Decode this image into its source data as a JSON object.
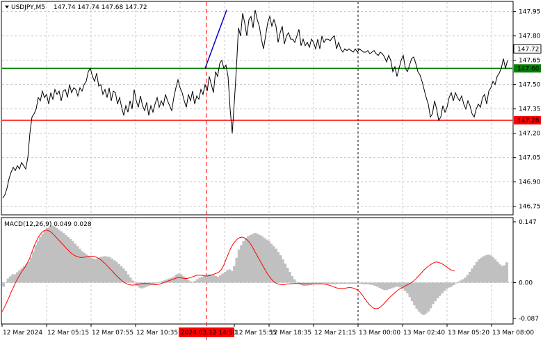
{
  "header": {
    "symbol_timeframe": "USDJPY,M5",
    "ohlc": "147.74 147.74 147.68 147.72"
  },
  "macd": {
    "label": "MACD(12,26,9) 0.049 0.028",
    "axis_labels": [
      "0.147",
      "0.00",
      "-0.087"
    ]
  },
  "price_axis": {
    "ticks": [
      "147.95",
      "147.80",
      "147.65",
      "147.50",
      "147.35",
      "147.20",
      "147.05",
      "146.90",
      "146.75"
    ],
    "current_price": "147.72",
    "levels": [
      {
        "value": "147.60",
        "color": "#008000"
      },
      {
        "value": "147.28",
        "color": "#ff0000"
      }
    ]
  },
  "time_axis": {
    "labels": [
      "12 Mar 2024",
      "12 Mar 05:15",
      "12 Mar 07:55",
      "12 Mar 10:35",
      "12 Mar 15:55",
      "12 Mar 18:35",
      "12 Mar 21:15",
      "13 Mar 00:00",
      "13 Mar 02:40",
      "13 Mar 05:20",
      "13 Mar 08:00"
    ],
    "highlight": "2024.03.12 14:50"
  },
  "colors": {
    "price_line": "#000000",
    "trend_line": "#0000cc",
    "macd_histogram": "#c0c0c0",
    "macd_signal": "#ff0000",
    "grid": "#c8c8c8",
    "highlight_bg": "#ff0000"
  },
  "chart_data": {
    "type": "line",
    "title": "USDJPY,M5",
    "ylim": [
      146.71,
      148.0
    ],
    "price_x": [
      0,
      3,
      6,
      9,
      12,
      15,
      18,
      21,
      24,
      27,
      30,
      33,
      36,
      39,
      42,
      45,
      48,
      51,
      54,
      57,
      60,
      63,
      66,
      69,
      72,
      75,
      78,
      81,
      84,
      87,
      90,
      93,
      96,
      99,
      102,
      105,
      108,
      111,
      114,
      117,
      120,
      123,
      126,
      129,
      132,
      135,
      138,
      141,
      144,
      147,
      150,
      153,
      156,
      159,
      162,
      165,
      168,
      171,
      174,
      177,
      180,
      183,
      186,
      189,
      192,
      195,
      198,
      201,
      204,
      207,
      210,
      213,
      216,
      219,
      222,
      225,
      228,
      231,
      234,
      237,
      240,
      243,
      246,
      249,
      252,
      255,
      258,
      261,
      264,
      267,
      270,
      273,
      276,
      279,
      282,
      285,
      288,
      291,
      294,
      297,
      300,
      303,
      306,
      309,
      312,
      315,
      318,
      321,
      324,
      327,
      330,
      333,
      336,
      339,
      342,
      345,
      348,
      351,
      354,
      357,
      360,
      363,
      366,
      369,
      372,
      375,
      378,
      381,
      384,
      387,
      390,
      393,
      396,
      399,
      402,
      405,
      408,
      411,
      414,
      417,
      420,
      423,
      426,
      429,
      432,
      435,
      438,
      441,
      444,
      447,
      450,
      453,
      456,
      459,
      462,
      465,
      468,
      471,
      474,
      477,
      480,
      483,
      486,
      489,
      492,
      495,
      498,
      501,
      504,
      507,
      510,
      513,
      516,
      519,
      522,
      525,
      528,
      531,
      534,
      537,
      540,
      543,
      546,
      549,
      552,
      555,
      558,
      561,
      564,
      567,
      570,
      573,
      576,
      579,
      582,
      585,
      588,
      591,
      594,
      597,
      600,
      603,
      606,
      609,
      612,
      615,
      618,
      621,
      624,
      627,
      630,
      633,
      636,
      639,
      642,
      645,
      648,
      651,
      654,
      657,
      660,
      663,
      666,
      669,
      672,
      675,
      678,
      681,
      684,
      687,
      690,
      693,
      696,
      699,
      702,
      705,
      708,
      711,
      714,
      717,
      720,
      723,
      726
    ],
    "price": [
      146.8,
      146.82,
      146.86,
      146.92,
      146.96,
      146.99,
      146.97,
      147.0,
      146.98,
      147.02,
      147.0,
      146.98,
      147.05,
      147.2,
      147.3,
      147.32,
      147.35,
      147.42,
      147.4,
      147.46,
      147.42,
      147.44,
      147.38,
      147.45,
      147.41,
      147.47,
      147.44,
      147.46,
      147.4,
      147.46,
      147.47,
      147.42,
      147.5,
      147.45,
      147.48,
      147.47,
      147.43,
      147.48,
      147.46,
      147.5,
      147.52,
      147.58,
      147.6,
      147.55,
      147.52,
      147.57,
      147.49,
      147.5,
      147.44,
      147.47,
      147.42,
      147.48,
      147.4,
      147.46,
      147.45,
      147.38,
      147.42,
      147.36,
      147.31,
      147.37,
      147.33,
      147.4,
      147.35,
      147.47,
      147.4,
      147.36,
      147.43,
      147.37,
      147.34,
      147.39,
      147.31,
      147.37,
      147.33,
      147.38,
      147.42,
      147.36,
      147.4,
      147.37,
      147.44,
      147.4,
      147.37,
      147.34,
      147.42,
      147.48,
      147.53,
      147.48,
      147.45,
      147.4,
      147.36,
      147.44,
      147.4,
      147.46,
      147.38,
      147.43,
      147.41,
      147.47,
      147.44,
      147.5,
      147.46,
      147.55,
      147.5,
      147.45,
      147.58,
      147.55,
      147.63,
      147.65,
      147.6,
      147.62,
      147.55,
      147.35,
      147.2,
      147.39,
      147.6,
      147.85,
      147.8,
      147.94,
      147.88,
      147.8,
      147.9,
      147.92,
      147.85,
      147.96,
      147.9,
      147.86,
      147.78,
      147.72,
      147.8,
      147.88,
      147.92,
      147.86,
      147.9,
      147.86,
      147.76,
      147.82,
      147.86,
      147.75,
      147.8,
      147.82,
      147.78,
      147.78,
      147.76,
      147.8,
      147.84,
      147.74,
      147.78,
      147.74,
      147.76,
      147.73,
      147.78,
      147.76,
      147.72,
      147.78,
      147.72,
      147.8,
      147.76,
      147.78,
      147.78,
      147.77,
      147.79,
      147.8,
      147.72,
      147.76,
      147.72,
      147.7,
      147.72,
      147.71,
      147.72,
      147.71,
      147.7,
      147.72,
      147.7,
      147.72,
      147.71,
      147.7,
      147.7,
      147.71,
      147.69,
      147.7,
      147.71,
      147.69,
      147.68,
      147.7,
      147.69,
      147.67,
      147.64,
      147.68,
      147.65,
      147.58,
      147.61,
      147.55,
      147.6,
      147.65,
      147.68,
      147.6,
      147.58,
      147.62,
      147.66,
      147.67,
      147.63,
      147.58,
      147.56,
      147.52,
      147.47,
      147.42,
      147.38,
      147.3,
      147.32,
      147.4,
      147.35,
      147.28,
      147.3,
      147.37,
      147.33,
      147.36,
      147.42,
      147.45,
      147.4,
      147.45,
      147.42,
      147.4,
      147.43,
      147.38,
      147.35,
      147.4,
      147.37,
      147.32,
      147.3,
      147.35,
      147.38,
      147.36,
      147.42,
      147.44,
      147.38,
      147.46,
      147.48,
      147.52,
      147.5,
      147.55,
      147.57,
      147.6,
      147.66,
      147.6,
      147.65,
      147.62,
      147.66,
      147.6,
      147.58,
      147.55,
      147.62,
      147.58,
      147.56,
      147.6,
      147.55,
      147.65,
      147.7,
      147.68,
      147.74,
      147.72
    ],
    "trend_line": {
      "x": [
        295,
        326
      ],
      "y": [
        147.6,
        147.96
      ]
    },
    "levels": [
      147.6,
      147.28
    ],
    "macd": {
      "ylim": [
        -0.095,
        0.152
      ],
      "histogram": [
        -0.01,
        0.0,
        0.01,
        0.015,
        0.02,
        0.02,
        0.025,
        0.03,
        0.035,
        0.04,
        0.045,
        0.05,
        0.06,
        0.075,
        0.09,
        0.1,
        0.11,
        0.118,
        0.125,
        0.132,
        0.135,
        0.138,
        0.136,
        0.132,
        0.128,
        0.124,
        0.12,
        0.115,
        0.11,
        0.105,
        0.1,
        0.094,
        0.088,
        0.082,
        0.076,
        0.072,
        0.068,
        0.063,
        0.06,
        0.058,
        0.057,
        0.06,
        0.062,
        0.063,
        0.064,
        0.063,
        0.062,
        0.058,
        0.054,
        0.05,
        0.045,
        0.04,
        0.034,
        0.028,
        0.02,
        0.012,
        0.005,
        -0.002,
        -0.008,
        -0.012,
        -0.014,
        -0.012,
        -0.01,
        -0.008,
        -0.006,
        -0.004,
        -0.002,
        0.0,
        0.002,
        0.004,
        0.006,
        0.008,
        0.01,
        0.012,
        0.015,
        0.02,
        0.022,
        0.02,
        0.015,
        0.01,
        0.006,
        0.003,
        0.002,
        0.004,
        0.008,
        0.012,
        0.014,
        0.016,
        0.018,
        0.02,
        0.02,
        0.018,
        0.016,
        0.014,
        0.018,
        0.022,
        0.026,
        0.03,
        0.032,
        0.028,
        0.04,
        0.06,
        0.08,
        0.09,
        0.1,
        0.108,
        0.112,
        0.115,
        0.118,
        0.12,
        0.118,
        0.115,
        0.112,
        0.108,
        0.104,
        0.1,
        0.094,
        0.088,
        0.082,
        0.074,
        0.066,
        0.056,
        0.046,
        0.036,
        0.026,
        0.016,
        0.008,
        0.002,
        -0.003,
        -0.006,
        -0.008,
        -0.008,
        -0.007,
        -0.006,
        -0.005,
        -0.004,
        -0.004,
        -0.003,
        -0.003,
        -0.002,
        -0.003,
        -0.003,
        -0.004,
        -0.004,
        -0.004,
        -0.003,
        -0.003,
        -0.003,
        -0.003,
        -0.003,
        -0.003,
        -0.003,
        -0.003,
        -0.003,
        -0.003,
        -0.003,
        -0.004,
        -0.004,
        -0.004,
        -0.005,
        -0.006,
        -0.008,
        -0.01,
        -0.013,
        -0.016,
        -0.018,
        -0.018,
        -0.016,
        -0.014,
        -0.012,
        -0.01,
        -0.01,
        -0.012,
        -0.015,
        -0.02,
        -0.026,
        -0.035,
        -0.045,
        -0.055,
        -0.063,
        -0.07,
        -0.075,
        -0.078,
        -0.075,
        -0.07,
        -0.062,
        -0.052,
        -0.045,
        -0.038,
        -0.032,
        -0.026,
        -0.02,
        -0.015,
        -0.012,
        -0.01,
        -0.006,
        -0.002,
        0.002,
        0.005,
        0.008,
        0.012,
        0.018,
        0.026,
        0.034,
        0.042,
        0.05,
        0.056,
        0.06,
        0.064,
        0.066,
        0.068,
        0.066,
        0.062,
        0.056,
        0.05,
        0.044,
        0.04,
        0.042,
        0.049
      ],
      "signal": [
        -0.07,
        -0.06,
        -0.048,
        -0.035,
        -0.022,
        -0.01,
        0.002,
        0.012,
        0.022,
        0.03,
        0.038,
        0.048,
        0.06,
        0.075,
        0.09,
        0.102,
        0.112,
        0.12,
        0.125,
        0.127,
        0.126,
        0.123,
        0.118,
        0.112,
        0.106,
        0.1,
        0.094,
        0.088,
        0.082,
        0.076,
        0.071,
        0.067,
        0.064,
        0.062,
        0.061,
        0.061,
        0.062,
        0.063,
        0.064,
        0.064,
        0.063,
        0.061,
        0.058,
        0.054,
        0.049,
        0.044,
        0.038,
        0.032,
        0.026,
        0.02,
        0.014,
        0.009,
        0.004,
        0.0,
        -0.003,
        -0.005,
        -0.006,
        -0.006,
        -0.005,
        -0.004,
        -0.003,
        -0.002,
        -0.002,
        -0.002,
        -0.003,
        -0.004,
        -0.005,
        -0.005,
        -0.004,
        -0.002,
        0.0,
        0.002,
        0.004,
        0.006,
        0.008,
        0.01,
        0.012,
        0.012,
        0.011,
        0.01,
        0.01,
        0.011,
        0.013,
        0.015,
        0.017,
        0.018,
        0.018,
        0.017,
        0.016,
        0.016,
        0.017,
        0.019,
        0.021,
        0.023,
        0.026,
        0.032,
        0.042,
        0.056,
        0.07,
        0.083,
        0.093,
        0.1,
        0.106,
        0.109,
        0.11,
        0.108,
        0.104,
        0.098,
        0.09,
        0.08,
        0.07,
        0.06,
        0.05,
        0.04,
        0.03,
        0.021,
        0.013,
        0.006,
        0.001,
        -0.002,
        -0.004,
        -0.005,
        -0.005,
        -0.004,
        -0.003,
        -0.003,
        -0.002,
        -0.002,
        -0.002,
        -0.002,
        -0.003,
        -0.003,
        -0.003,
        -0.003,
        -0.003,
        -0.003,
        -0.003,
        -0.003,
        -0.003,
        -0.003,
        -0.004,
        -0.005,
        -0.007,
        -0.009,
        -0.011,
        -0.013,
        -0.014,
        -0.014,
        -0.014,
        -0.013,
        -0.012,
        -0.012,
        -0.013,
        -0.015,
        -0.018,
        -0.023,
        -0.03,
        -0.038,
        -0.046,
        -0.053,
        -0.058,
        -0.062,
        -0.063,
        -0.062,
        -0.058,
        -0.053,
        -0.047,
        -0.041,
        -0.035,
        -0.03,
        -0.025,
        -0.02,
        -0.016,
        -0.013,
        -0.01,
        -0.007,
        -0.004,
        -0.001,
        0.003,
        0.008,
        0.014,
        0.02,
        0.026,
        0.032,
        0.037,
        0.041,
        0.045,
        0.048,
        0.05,
        0.049,
        0.047,
        0.044,
        0.04,
        0.036,
        0.032,
        0.029,
        0.028
      ]
    }
  }
}
